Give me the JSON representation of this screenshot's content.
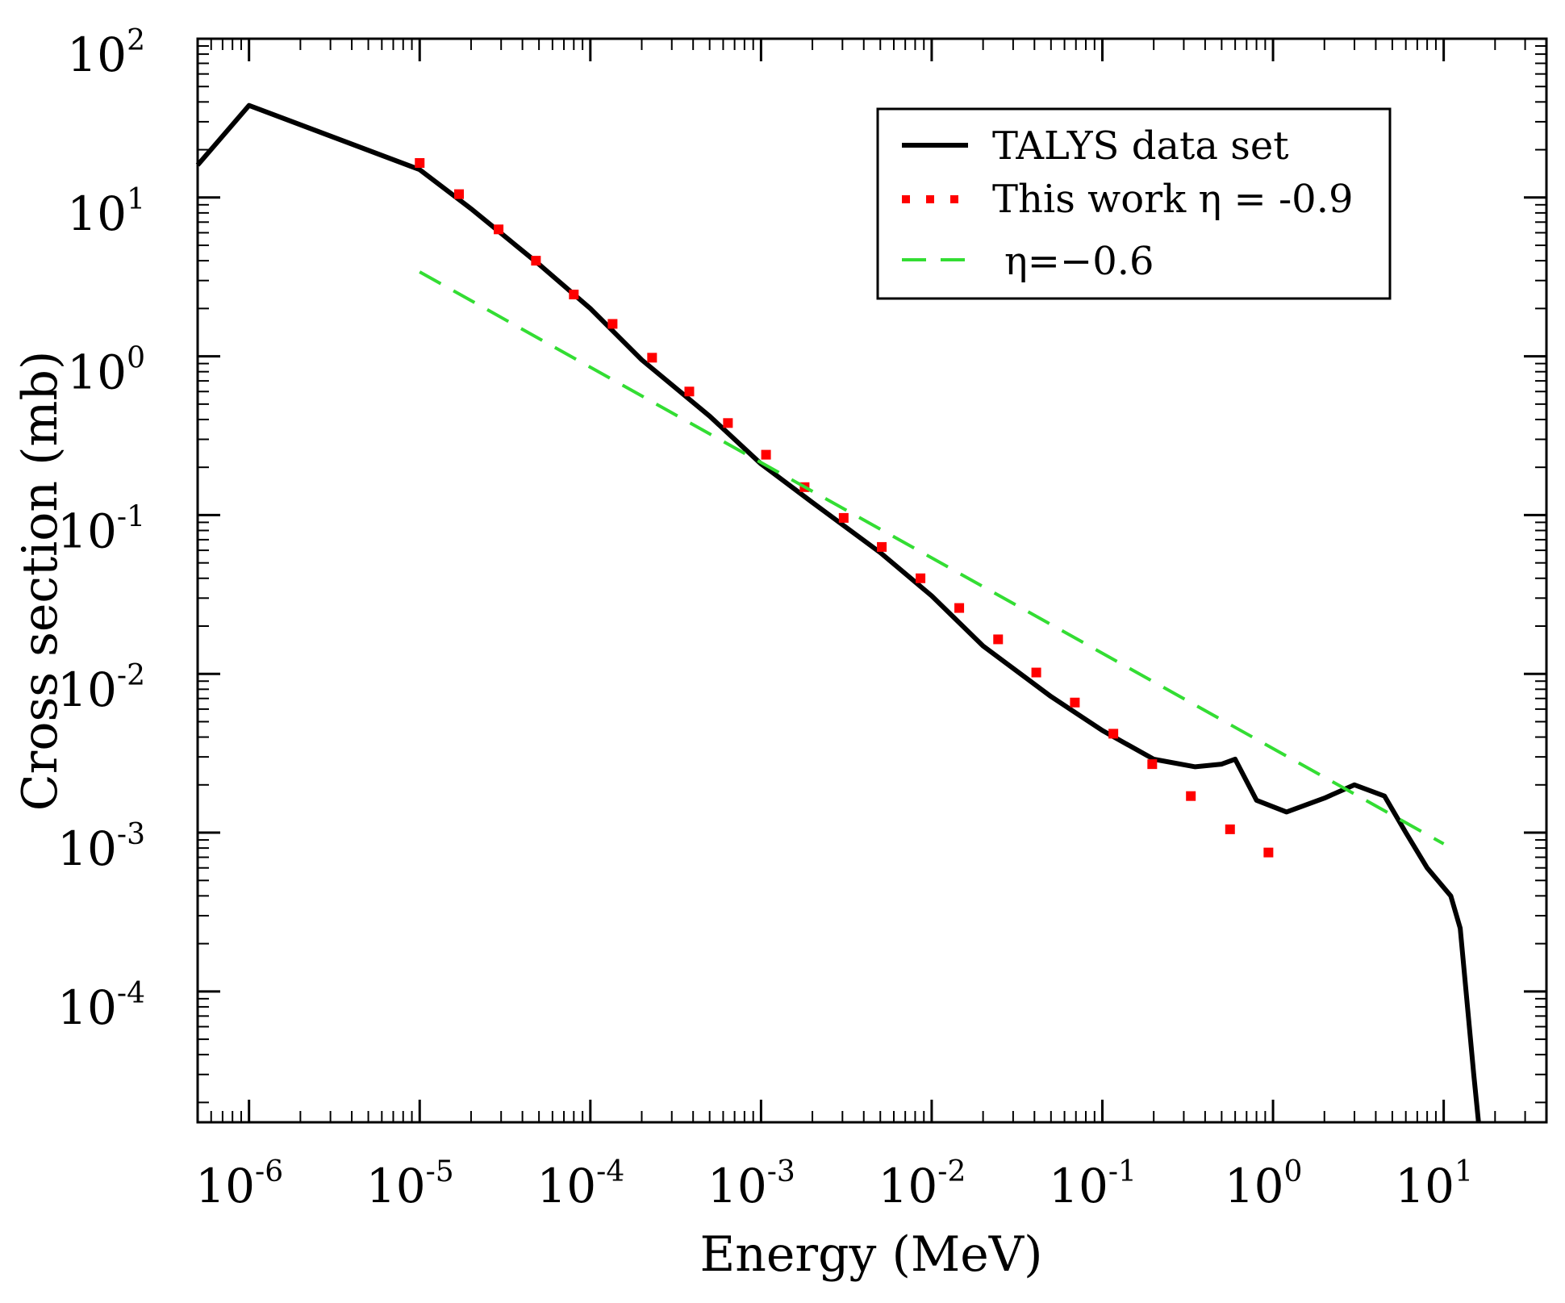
{
  "chart_data": {
    "type": "line",
    "xscale": "log",
    "yscale": "log",
    "xlim": [
      5e-07,
      40
    ],
    "ylim": [
      1.5e-05,
      100
    ],
    "xlabel": "Energy (MeV)",
    "ylabel": "Cross section (mb)",
    "x_ticks": [
      {
        "base": "10",
        "exp": "-6"
      },
      {
        "base": "10",
        "exp": "-5"
      },
      {
        "base": "10",
        "exp": "-4"
      },
      {
        "base": "10",
        "exp": "-3"
      },
      {
        "base": "10",
        "exp": "-2"
      },
      {
        "base": "10",
        "exp": "-1"
      },
      {
        "base": "10",
        "exp": "0"
      },
      {
        "base": "10",
        "exp": "1"
      }
    ],
    "y_ticks": [
      {
        "base": "10",
        "exp": "2"
      },
      {
        "base": "10",
        "exp": "1"
      },
      {
        "base": "10",
        "exp": "0"
      },
      {
        "base": "10",
        "exp": "-1"
      },
      {
        "base": "10",
        "exp": "-2"
      },
      {
        "base": "10",
        "exp": "-3"
      },
      {
        "base": "10",
        "exp": "-4"
      }
    ],
    "grid": false,
    "legend_position": "top-right",
    "series": [
      {
        "name": "TALYS data set",
        "style": "solid",
        "color": "#000000",
        "x": [
          5e-07,
          1e-06,
          1e-05,
          2e-05,
          5e-05,
          0.0001,
          0.0002,
          0.0005,
          0.001,
          0.002,
          0.005,
          0.01,
          0.02,
          0.05,
          0.1,
          0.2,
          0.35,
          0.5,
          0.6,
          0.8,
          1.2,
          2.0,
          3.0,
          4.5,
          6.0,
          8.0,
          11.0,
          12.5,
          15.0,
          16.0
        ],
        "y": [
          16,
          38,
          15,
          8.5,
          3.8,
          2.0,
          0.95,
          0.42,
          0.21,
          0.12,
          0.058,
          0.031,
          0.015,
          0.0072,
          0.0044,
          0.0029,
          0.0026,
          0.0027,
          0.0029,
          0.0016,
          0.00135,
          0.00165,
          0.002,
          0.0017,
          0.001,
          0.0006,
          0.0004,
          0.00025,
          3e-05,
          1.5e-05
        ]
      },
      {
        "name": "This work  η  = -0.9",
        "style": "dotted",
        "color": "#ff0000",
        "x": [
          1e-05,
          1.7e-05,
          2.9e-05,
          4.8e-05,
          8e-05,
          0.000135,
          0.00023,
          0.00038,
          0.00064,
          0.00107,
          0.0018,
          0.00305,
          0.0051,
          0.0086,
          0.0145,
          0.0245,
          0.041,
          0.069,
          0.116,
          0.196,
          0.33,
          0.56,
          0.94
        ],
        "y": [
          16.5,
          10.5,
          6.3,
          4.0,
          2.45,
          1.6,
          0.98,
          0.6,
          0.38,
          0.24,
          0.15,
          0.096,
          0.063,
          0.04,
          0.026,
          0.0165,
          0.0102,
          0.0066,
          0.0042,
          0.0027,
          0.0017,
          0.00105,
          0.00075
        ]
      },
      {
        "name": "η=−0.6",
        "style": "dashed",
        "color": "#33dd33",
        "x": [
          1e-05,
          10.0
        ],
        "y": [
          3.4,
          0.00085
        ]
      }
    ],
    "extra_points_note": ""
  }
}
